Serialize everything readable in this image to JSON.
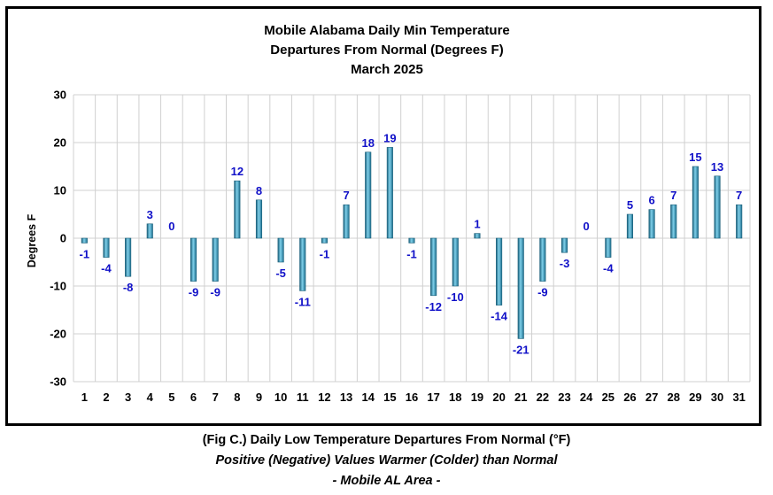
{
  "chart_data": {
    "type": "bar",
    "title_lines": [
      "Mobile Alabama Daily Min Temperature",
      "Departures From Normal (Degrees F)",
      "March 2025"
    ],
    "xlabel": "",
    "ylabel": "Degrees F",
    "ylim": [
      -30,
      30
    ],
    "yticks": [
      30,
      20,
      10,
      0,
      -10,
      -20,
      -30
    ],
    "grid": true,
    "categories": [
      "1",
      "2",
      "3",
      "4",
      "5",
      "6",
      "7",
      "8",
      "9",
      "10",
      "11",
      "12",
      "13",
      "14",
      "15",
      "16",
      "17",
      "18",
      "19",
      "20",
      "21",
      "22",
      "23",
      "24",
      "25",
      "26",
      "27",
      "28",
      "29",
      "30",
      "31"
    ],
    "values": [
      -1,
      -4,
      -8,
      3,
      0,
      -9,
      -9,
      12,
      8,
      -5,
      -11,
      -1,
      7,
      18,
      19,
      -1,
      -12,
      -10,
      1,
      -14,
      -21,
      -9,
      -3,
      0,
      -4,
      5,
      6,
      7,
      15,
      13,
      7
    ],
    "colors": {
      "bar": "#2e8fb3",
      "bar_dark": "#1a5f7a",
      "bar_light": "#7fd0ea",
      "data_label": "#1010c8",
      "grid": "#d0d0d0"
    }
  },
  "captions": {
    "line1": "(Fig C.) Daily Low Temperature Departures From Normal (°F)",
    "line2": "Positive (Negative) Values Warmer (Colder) than Normal",
    "line3": "- Mobile AL Area -"
  }
}
